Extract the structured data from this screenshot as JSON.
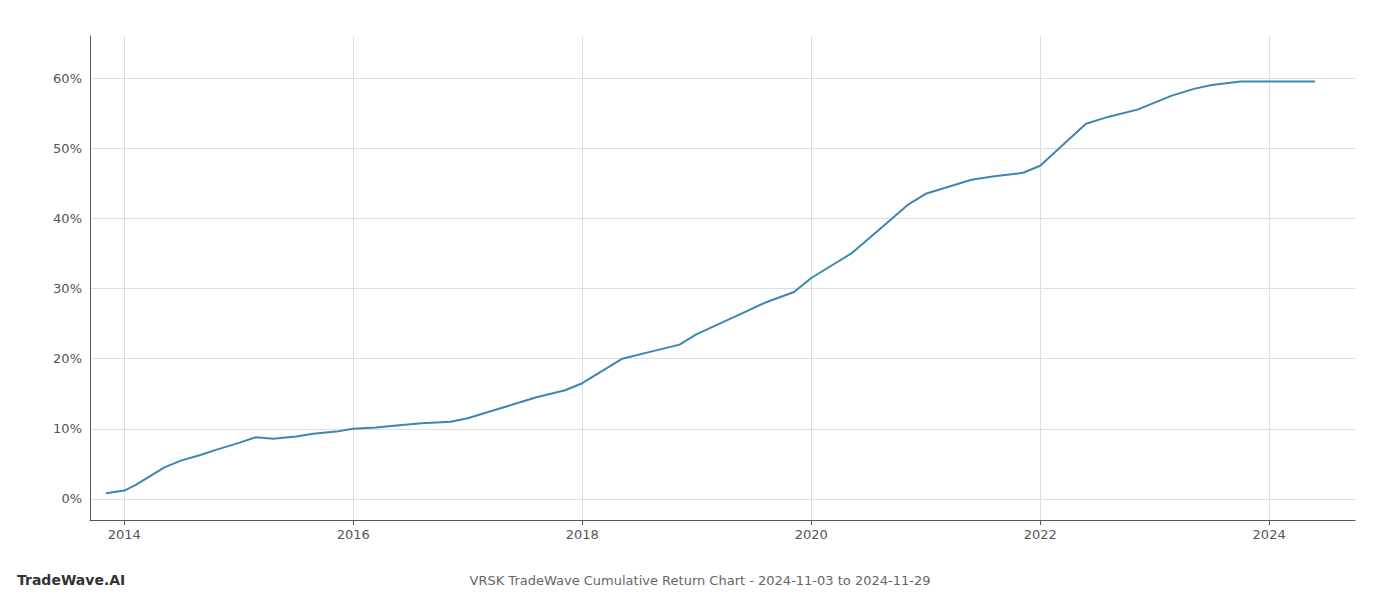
{
  "chart_data": {
    "type": "line",
    "title": "VRSK TradeWave Cumulative Return Chart - 2024-11-03 to 2024-11-29",
    "annotations": [
      "TradeWave.AI"
    ],
    "color": "#3a86b4",
    "x": [
      2013.84,
      2014.0,
      2014.1,
      2014.2,
      2014.35,
      2014.5,
      2014.65,
      2014.8,
      2015.0,
      2015.15,
      2015.3,
      2015.5,
      2015.65,
      2015.85,
      2016.0,
      2016.2,
      2016.4,
      2016.6,
      2016.85,
      2017.0,
      2017.2,
      2017.4,
      2017.6,
      2017.85,
      2018.0,
      2018.15,
      2018.35,
      2018.6,
      2018.85,
      2019.0,
      2019.2,
      2019.4,
      2019.6,
      2019.85,
      2020.0,
      2020.15,
      2020.35,
      2020.6,
      2020.85,
      2021.0,
      2021.2,
      2021.4,
      2021.6,
      2021.85,
      2022.0,
      2022.2,
      2022.4,
      2022.6,
      2022.85,
      2023.0,
      2023.15,
      2023.35,
      2023.5,
      2023.75,
      2024.0,
      2024.15,
      2024.4
    ],
    "values": [
      0.8,
      1.2,
      2.0,
      3.0,
      4.5,
      5.5,
      6.2,
      7.0,
      8.0,
      8.8,
      8.6,
      8.9,
      9.3,
      9.6,
      10.0,
      10.2,
      10.5,
      10.8,
      11.0,
      11.5,
      12.5,
      13.5,
      14.5,
      15.5,
      16.5,
      18.0,
      20.0,
      21.0,
      22.0,
      23.5,
      25.0,
      26.5,
      28.0,
      29.5,
      31.5,
      33.0,
      35.0,
      38.5,
      42.0,
      43.5,
      44.5,
      45.5,
      46.0,
      46.5,
      47.5,
      50.5,
      53.5,
      54.5,
      55.5,
      56.5,
      57.5,
      58.5,
      59.0,
      59.5,
      59.5,
      59.5,
      59.5
    ],
    "xlim": [
      2013.7,
      2024.75
    ],
    "ylim": [
      -3,
      66
    ],
    "xticks": [
      2014,
      2016,
      2018,
      2020,
      2022,
      2024
    ],
    "yticks": [
      {
        "value": 0,
        "label": "0%"
      },
      {
        "value": 10,
        "label": "10%"
      },
      {
        "value": 20,
        "label": "20%"
      },
      {
        "value": 30,
        "label": "30%"
      },
      {
        "value": 40,
        "label": "40%"
      },
      {
        "value": 50,
        "label": "50%"
      },
      {
        "value": 60,
        "label": "60%"
      }
    ],
    "grid": true
  }
}
